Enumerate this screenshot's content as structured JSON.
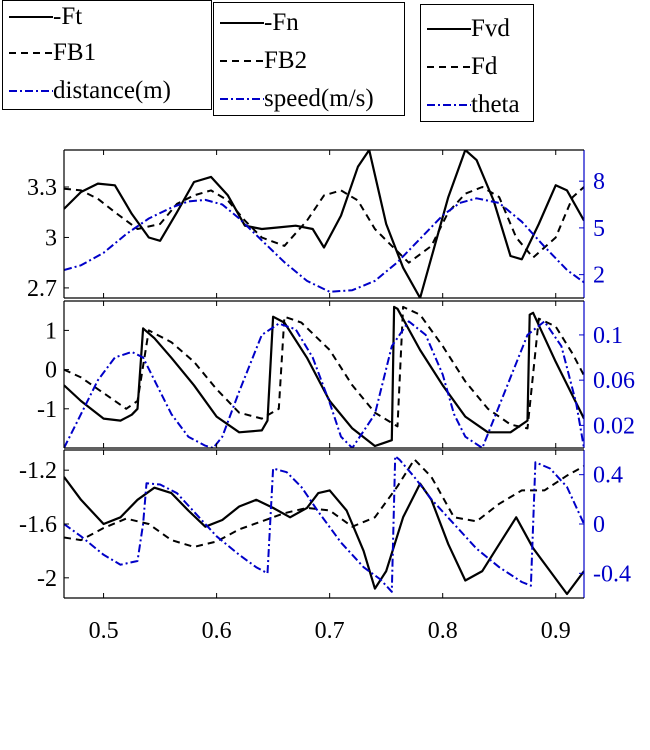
{
  "legends": [
    {
      "entries": [
        {
          "label": "-Ft",
          "color": "#000000",
          "dash": "solid"
        },
        {
          "label": "FB1",
          "color": "#000000",
          "dash": "dashed"
        },
        {
          "label": "distance(m)",
          "color": "#0000c8",
          "dash": "dashdot"
        }
      ]
    },
    {
      "entries": [
        {
          "label": "-Fn",
          "color": "#000000",
          "dash": "solid"
        },
        {
          "label": "FB2",
          "color": "#000000",
          "dash": "dashed"
        },
        {
          "label": "speed(m/s)",
          "color": "#0000c8",
          "dash": "dashdot"
        }
      ]
    },
    {
      "entries": [
        {
          "label": "Fvd",
          "color": "#000000",
          "dash": "solid"
        },
        {
          "label": "Fd",
          "color": "#000000",
          "dash": "dashed"
        },
        {
          "label": "theta",
          "color": "#0000c8",
          "dash": "dashdot"
        }
      ]
    }
  ],
  "chart_data": [
    {
      "type": "line",
      "panel": "top",
      "xlim": [
        0.465,
        0.925
      ],
      "ylim_left": [
        2.64,
        3.52
      ],
      "ylim_right": [
        0.5,
        10.0
      ],
      "yticks_left": [
        2.7,
        3,
        3.3
      ],
      "yticks_left_labels": [
        "2.7",
        "3",
        "3.3"
      ],
      "yticks_right": [
        2,
        5,
        8
      ],
      "yticks_right_labels": [
        "2",
        "5",
        "8"
      ],
      "right_axis_color": "#0000c8",
      "series": [
        {
          "name": "-Ft",
          "axis": "left",
          "style": "solid",
          "color": "#000000",
          "x": [
            0.465,
            0.48,
            0.495,
            0.51,
            0.525,
            0.54,
            0.55,
            0.565,
            0.58,
            0.595,
            0.61,
            0.625,
            0.64,
            0.655,
            0.67,
            0.685,
            0.695,
            0.71,
            0.725,
            0.735,
            0.75,
            0.765,
            0.78,
            0.79,
            0.805,
            0.82,
            0.83,
            0.845,
            0.86,
            0.87,
            0.885,
            0.9,
            0.91,
            0.925
          ],
          "y": [
            3.17,
            3.27,
            3.32,
            3.31,
            3.14,
            3.0,
            2.98,
            3.15,
            3.33,
            3.36,
            3.25,
            3.07,
            3.05,
            3.06,
            3.07,
            3.05,
            2.94,
            3.13,
            3.42,
            3.52,
            3.08,
            2.82,
            2.64,
            2.88,
            3.24,
            3.52,
            3.46,
            3.22,
            2.89,
            2.87,
            3.08,
            3.31,
            3.28,
            3.1
          ]
        },
        {
          "name": "FB1",
          "axis": "left",
          "style": "dashed",
          "color": "#000000",
          "x": [
            0.465,
            0.48,
            0.495,
            0.51,
            0.53,
            0.55,
            0.565,
            0.58,
            0.595,
            0.61,
            0.625,
            0.64,
            0.66,
            0.68,
            0.695,
            0.71,
            0.725,
            0.74,
            0.755,
            0.77,
            0.79,
            0.805,
            0.82,
            0.835,
            0.85,
            0.865,
            0.88,
            0.9,
            0.915,
            0.925
          ],
          "y": [
            3.29,
            3.28,
            3.23,
            3.15,
            3.05,
            3.08,
            3.2,
            3.25,
            3.28,
            3.22,
            3.1,
            3.0,
            2.95,
            3.1,
            3.25,
            3.28,
            3.22,
            3.05,
            2.95,
            2.85,
            2.95,
            3.15,
            3.26,
            3.3,
            3.24,
            3.0,
            2.88,
            3.0,
            3.24,
            3.3
          ]
        },
        {
          "name": "distance(m)",
          "axis": "right",
          "style": "dashdot",
          "color": "#0000c8",
          "x": [
            0.465,
            0.48,
            0.5,
            0.52,
            0.54,
            0.56,
            0.575,
            0.59,
            0.605,
            0.62,
            0.64,
            0.66,
            0.68,
            0.7,
            0.72,
            0.74,
            0.76,
            0.78,
            0.8,
            0.815,
            0.83,
            0.85,
            0.87,
            0.89,
            0.91,
            0.925
          ],
          "y": [
            2.3,
            2.6,
            3.4,
            4.6,
            5.6,
            6.3,
            6.7,
            6.8,
            6.5,
            5.6,
            4.2,
            2.8,
            1.6,
            0.9,
            1.0,
            1.6,
            2.8,
            4.3,
            5.8,
            6.6,
            6.9,
            6.6,
            5.4,
            3.8,
            2.3,
            1.5
          ]
        }
      ]
    },
    {
      "type": "line",
      "panel": "middle",
      "xlim": [
        0.465,
        0.925
      ],
      "ylim_left": [
        -2.0,
        1.75
      ],
      "ylim_right": [
        0.0,
        0.13
      ],
      "yticks_left": [
        -1,
        0,
        1
      ],
      "yticks_left_labels": [
        "-1",
        "0",
        "1"
      ],
      "yticks_right": [
        0.02,
        0.06,
        0.1
      ],
      "yticks_right_labels": [
        "0.02",
        "0.06",
        "0.1"
      ],
      "right_axis_color": "#0000c8",
      "series": [
        {
          "name": "-Fn",
          "axis": "left",
          "style": "solid",
          "color": "#000000",
          "x": [
            0.465,
            0.48,
            0.5,
            0.515,
            0.525,
            0.53,
            0.535,
            0.545,
            0.56,
            0.58,
            0.6,
            0.62,
            0.64,
            0.645,
            0.65,
            0.66,
            0.68,
            0.7,
            0.72,
            0.74,
            0.755,
            0.757,
            0.76,
            0.78,
            0.8,
            0.82,
            0.84,
            0.86,
            0.875,
            0.877,
            0.88,
            0.9,
            0.925
          ],
          "y": [
            -0.4,
            -0.8,
            -1.25,
            -1.3,
            -1.15,
            -1.0,
            1.05,
            0.8,
            0.3,
            -0.4,
            -1.2,
            -1.6,
            -1.55,
            -1.3,
            1.35,
            1.2,
            0.3,
            -0.8,
            -1.5,
            -1.95,
            -1.8,
            1.6,
            1.55,
            0.5,
            -0.4,
            -1.2,
            -1.6,
            -1.6,
            -1.3,
            1.4,
            1.45,
            0.2,
            -1.25
          ]
        },
        {
          "name": "FB2",
          "axis": "left",
          "style": "dashed",
          "color": "#000000",
          "x": [
            0.465,
            0.48,
            0.5,
            0.52,
            0.53,
            0.54,
            0.56,
            0.58,
            0.6,
            0.62,
            0.64,
            0.655,
            0.66,
            0.675,
            0.7,
            0.72,
            0.74,
            0.76,
            0.765,
            0.78,
            0.8,
            0.82,
            0.84,
            0.86,
            0.875,
            0.885,
            0.9,
            0.915,
            0.925
          ],
          "y": [
            0.0,
            -0.2,
            -0.6,
            -1.0,
            -0.8,
            1.0,
            0.7,
            0.2,
            -0.5,
            -1.1,
            -1.25,
            -1.0,
            1.35,
            1.2,
            0.5,
            -0.4,
            -1.1,
            -1.45,
            1.6,
            1.4,
            0.6,
            -0.3,
            -1.0,
            -1.4,
            -1.5,
            1.3,
            1.1,
            0.4,
            -0.15
          ]
        },
        {
          "name": "theta",
          "axis": "right",
          "style": "dashdot",
          "color": "#0000c8",
          "x": [
            0.465,
            0.48,
            0.495,
            0.51,
            0.525,
            0.535,
            0.545,
            0.56,
            0.575,
            0.59,
            0.597,
            0.605,
            0.62,
            0.64,
            0.655,
            0.67,
            0.685,
            0.7,
            0.71,
            0.72,
            0.74,
            0.755,
            0.77,
            0.785,
            0.8,
            0.81,
            0.82,
            0.835,
            0.855,
            0.875,
            0.89,
            0.905,
            0.918,
            0.925
          ],
          "y": [
            0.0,
            0.03,
            0.06,
            0.08,
            0.085,
            0.08,
            0.06,
            0.03,
            0.01,
            0.002,
            0.0,
            0.01,
            0.05,
            0.1,
            0.11,
            0.105,
            0.08,
            0.04,
            0.01,
            0.0,
            0.03,
            0.09,
            0.112,
            0.1,
            0.065,
            0.03,
            0.01,
            0.0,
            0.05,
            0.1,
            0.112,
            0.09,
            0.04,
            0.0
          ]
        }
      ]
    },
    {
      "type": "line",
      "panel": "bottom",
      "xlim": [
        0.465,
        0.925
      ],
      "ylim_left": [
        -2.15,
        -1.05
      ],
      "ylim_right": [
        -0.6,
        0.6
      ],
      "yticks_left": [
        -2,
        -1.6,
        -1.2
      ],
      "yticks_left_labels": [
        "-2",
        "-1.6",
        "-1.2"
      ],
      "yticks_right": [
        -0.4,
        0,
        0.4
      ],
      "yticks_right_labels": [
        "-0.4",
        "0",
        "0.4"
      ],
      "right_axis_color": "#0000c8",
      "series": [
        {
          "name": "Fvd",
          "axis": "left",
          "style": "solid",
          "color": "#000000",
          "x": [
            0.465,
            0.48,
            0.5,
            0.515,
            0.53,
            0.545,
            0.56,
            0.575,
            0.59,
            0.605,
            0.62,
            0.635,
            0.65,
            0.665,
            0.68,
            0.69,
            0.7,
            0.715,
            0.73,
            0.74,
            0.75,
            0.765,
            0.78,
            0.79,
            0.805,
            0.82,
            0.835,
            0.85,
            0.865,
            0.88,
            0.895,
            0.91,
            0.925
          ],
          "y": [
            -1.25,
            -1.42,
            -1.6,
            -1.55,
            -1.42,
            -1.33,
            -1.37,
            -1.5,
            -1.62,
            -1.57,
            -1.47,
            -1.42,
            -1.48,
            -1.55,
            -1.48,
            -1.37,
            -1.35,
            -1.5,
            -1.8,
            -2.08,
            -1.95,
            -1.55,
            -1.3,
            -1.42,
            -1.75,
            -2.02,
            -1.95,
            -1.75,
            -1.55,
            -1.78,
            -1.95,
            -2.12,
            -1.95
          ]
        },
        {
          "name": "Fd",
          "axis": "left",
          "style": "dashed",
          "color": "#000000",
          "x": [
            0.465,
            0.48,
            0.5,
            0.52,
            0.54,
            0.56,
            0.58,
            0.6,
            0.62,
            0.64,
            0.66,
            0.68,
            0.7,
            0.72,
            0.74,
            0.76,
            0.775,
            0.79,
            0.81,
            0.83,
            0.85,
            0.87,
            0.89,
            0.91,
            0.925
          ],
          "y": [
            -1.7,
            -1.72,
            -1.63,
            -1.56,
            -1.6,
            -1.72,
            -1.77,
            -1.73,
            -1.64,
            -1.58,
            -1.52,
            -1.48,
            -1.5,
            -1.62,
            -1.55,
            -1.32,
            -1.12,
            -1.25,
            -1.55,
            -1.58,
            -1.45,
            -1.35,
            -1.35,
            -1.24,
            -1.17
          ]
        },
        {
          "name": "theta",
          "axis": "right",
          "style": "dashdot",
          "color": "#0000c8",
          "x": [
            0.465,
            0.48,
            0.5,
            0.515,
            0.53,
            0.535,
            0.538,
            0.55,
            0.565,
            0.58,
            0.6,
            0.62,
            0.635,
            0.645,
            0.65,
            0.662,
            0.675,
            0.69,
            0.71,
            0.73,
            0.745,
            0.755,
            0.758,
            0.762,
            0.775,
            0.79,
            0.81,
            0.83,
            0.85,
            0.87,
            0.878,
            0.882,
            0.895,
            0.91,
            0.925
          ],
          "y": [
            0.0,
            -0.1,
            -0.25,
            -0.33,
            -0.3,
            0.0,
            0.33,
            0.32,
            0.25,
            0.1,
            -0.1,
            -0.25,
            -0.35,
            -0.4,
            0.45,
            0.42,
            0.3,
            0.1,
            -0.15,
            -0.35,
            -0.45,
            -0.55,
            0.55,
            0.52,
            0.38,
            0.2,
            0.0,
            -0.2,
            -0.35,
            -0.47,
            -0.5,
            0.5,
            0.45,
            0.3,
            0.0
          ]
        }
      ]
    }
  ],
  "xticks": [
    0.5,
    0.6,
    0.7,
    0.8,
    0.9
  ],
  "xtick_labels": [
    "0.5",
    "0.6",
    "0.7",
    "0.8",
    "0.9"
  ]
}
